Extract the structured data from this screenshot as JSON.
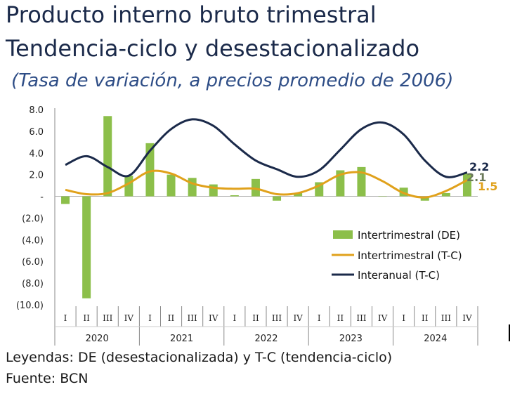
{
  "header": {
    "title_line1": "Producto interno bruto trimestral",
    "title_line2": "Tendencia-ciclo y desestacionalizado",
    "subtitle": "(Tasa de variación, a precios promedio de 2006)"
  },
  "chart_data": {
    "type": "bar+line",
    "quarter_labels": [
      "I",
      "II",
      "III",
      "IV",
      "I",
      "II",
      "III",
      "IV",
      "I",
      "II",
      "III",
      "IV",
      "I",
      "II",
      "III",
      "IV",
      "I",
      "II",
      "III",
      "IV"
    ],
    "year_labels": [
      "2020",
      "2021",
      "2022",
      "2023",
      "2024"
    ],
    "y_ticks": [
      "8.0",
      "6.0",
      "4.0",
      "2.0",
      "-",
      "(2.0)",
      "(4.0)",
      "(6.0)",
      "(8.0)",
      "(10.0)"
    ],
    "ylim": [
      -10,
      8
    ],
    "series": [
      {
        "name": "Intertrimestral (DE)",
        "kind": "bar",
        "color": "#8cbf4a",
        "values": [
          -0.7,
          -9.4,
          7.4,
          1.9,
          4.9,
          2.0,
          1.7,
          1.1,
          0.1,
          1.6,
          -0.4,
          0.3,
          1.3,
          2.4,
          2.7,
          0.0,
          0.8,
          -0.4,
          0.3,
          2.1
        ]
      },
      {
        "name": "Intertrimestral (T-C)",
        "kind": "line",
        "color": "#e0a11b",
        "values": [
          0.6,
          0.2,
          0.3,
          1.2,
          2.3,
          2.1,
          1.2,
          0.8,
          0.7,
          0.7,
          0.2,
          0.3,
          1.0,
          2.0,
          2.2,
          1.4,
          0.3,
          -0.1,
          0.5,
          1.5
        ]
      },
      {
        "name": "Interanual (T-C)",
        "kind": "line",
        "color": "#1b2a4a",
        "values": [
          2.9,
          3.7,
          2.7,
          1.9,
          4.2,
          6.2,
          7.1,
          6.5,
          4.8,
          3.3,
          2.5,
          1.8,
          2.4,
          4.3,
          6.2,
          6.8,
          5.7,
          3.3,
          1.8,
          2.2
        ]
      }
    ],
    "end_labels": [
      {
        "text": "2.2",
        "color": "#1b2a4a"
      },
      {
        "text": "2.1",
        "color": "#6b7a5a"
      },
      {
        "text": "1.5",
        "color": "#e0a11b"
      }
    ],
    "legend_position": "right-center",
    "grid": false
  },
  "footer": {
    "line1": "Leyendas: DE (desestacionalizada) y T-C (tendencia-ciclo)",
    "line2": "Fuente: BCN"
  }
}
